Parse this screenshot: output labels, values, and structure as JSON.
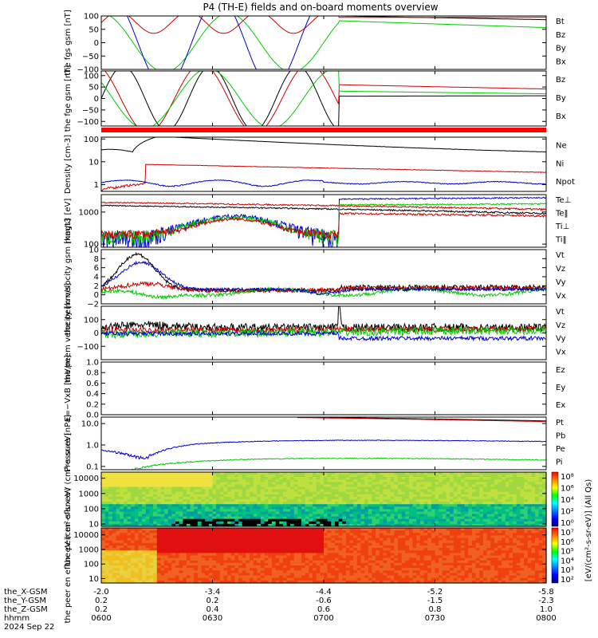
{
  "title": "P4 (TH-E) fields and on-board moments overview",
  "colors": {
    "black": "#000000",
    "red": "#cc0000",
    "green": "#00cc00",
    "blue": "#0000cc"
  },
  "time_axis": {
    "ticks": [
      "0600",
      "0630",
      "0700",
      "0730",
      "0800"
    ],
    "rows": [
      {
        "label": "the_X-GSM",
        "values": [
          "-2.0",
          "-3.4",
          "-4.4",
          "-5.2",
          "-5.8"
        ]
      },
      {
        "label": "the_Y-GSM",
        "values": [
          "0.2",
          "0.2",
          "-0.6",
          "-1.5",
          "-2.3"
        ]
      },
      {
        "label": "the_Z-GSM",
        "values": [
          "0.2",
          "0.4",
          "0.6",
          "0.8",
          "1.0"
        ]
      },
      {
        "label": "hhmm",
        "values": [
          "0600",
          "0630",
          "0700",
          "0730",
          "0800"
        ]
      }
    ],
    "date": "2024 Sep 22"
  },
  "colorbar_label": "[eV/(cm²-s-sr-eV)] (All Qs)",
  "colorbars": [
    {
      "ticks": [
        "10⁸",
        "10⁶",
        "10⁴",
        "10²",
        "10⁰"
      ]
    },
    {
      "ticks": [
        "10⁷",
        "10⁶",
        "10⁵",
        "10⁴",
        "10³",
        "10²"
      ]
    }
  ],
  "chart_data": [
    {
      "type": "line",
      "name": "fgs",
      "ylabel": "the fgs gsm [nT]",
      "ylim": [
        -100,
        100
      ],
      "yticks": [
        "100",
        "50",
        "0",
        "−50",
        "−100"
      ],
      "legend": [
        {
          "text": "Bt",
          "color": "black"
        },
        {
          "text": "Bz",
          "color": "red"
        },
        {
          "text": "By",
          "color": "green"
        },
        {
          "text": "Bx",
          "color": "blue"
        }
      ]
    },
    {
      "type": "line",
      "name": "fge",
      "ylabel": "the fge gsm [nT]",
      "ylim": [
        -120,
        120
      ],
      "yticks": [
        "100",
        "50",
        "0",
        "−50",
        "−100"
      ],
      "legend": [
        {
          "text": "Bz",
          "color": "red"
        },
        {
          "text": "By",
          "color": "green"
        },
        {
          "text": "Bx",
          "color": "black"
        }
      ]
    },
    {
      "type": "line",
      "name": "density",
      "ylabel": "Density [cm-3]",
      "scale": "log",
      "ylim": [
        0.5,
        120
      ],
      "yticks": [
        "100",
        "10",
        "1"
      ],
      "legend": [
        {
          "text": "Ne",
          "color": "red"
        },
        {
          "text": "Ni",
          "color": "black"
        },
        {
          "text": "Npot",
          "color": "blue"
        }
      ]
    },
    {
      "type": "line",
      "name": "temperature",
      "ylabel": "magt3 [eV]",
      "scale": "log",
      "ylim": [
        80,
        3500
      ],
      "yticks": [
        "1000",
        "100"
      ],
      "legend": [
        {
          "text": "Te⊥",
          "color": "red"
        },
        {
          "text": "Te‖",
          "color": "black"
        },
        {
          "text": "Ti⊥",
          "color": "red"
        },
        {
          "text": "Ti‖",
          "color": "green"
        }
      ]
    },
    {
      "type": "line",
      "name": "peim",
      "ylabel": "the peim velocity gsm [km/s]",
      "ylim": [
        -2,
        10
      ],
      "yticks": [
        "10",
        "8",
        "6",
        "4",
        "2",
        "0",
        "−2"
      ],
      "legend": [
        {
          "text": "Vt",
          "color": "black"
        },
        {
          "text": "Vz",
          "color": "red"
        },
        {
          "text": "Vy",
          "color": "green"
        },
        {
          "text": "Vx",
          "color": "blue"
        }
      ]
    },
    {
      "type": "line",
      "name": "peem",
      "ylabel": "the peem velocity [km/s]",
      "ylim": [
        -200,
        200
      ],
      "yticks": [
        "100",
        "0",
        "−100"
      ],
      "legend": [
        {
          "text": "Vt",
          "color": "black"
        },
        {
          "text": "Vz",
          "color": "red"
        },
        {
          "text": "Vy",
          "color": "green"
        },
        {
          "text": "Vx",
          "color": "blue"
        }
      ]
    },
    {
      "type": "line",
      "name": "efield",
      "ylabel": "E=−VxB [mV/m]",
      "ylim": [
        0,
        1
      ],
      "yticks": [
        "1.0",
        "0.8",
        "0.6",
        "0.4",
        "0.2",
        "0.0"
      ],
      "legend": [
        {
          "text": "Ez",
          "color": "red"
        },
        {
          "text": "Ey",
          "color": "green"
        },
        {
          "text": "Ex",
          "color": "blue"
        }
      ]
    },
    {
      "type": "line",
      "name": "pressure",
      "ylabel": "Pressure [nPa]",
      "scale": "log",
      "ylim": [
        0.07,
        20
      ],
      "yticks": [
        "10.0",
        "1.0",
        "0.1"
      ],
      "legend": [
        {
          "text": "Pt",
          "color": "black"
        },
        {
          "text": "Pb",
          "color": "red"
        },
        {
          "text": "Pe",
          "color": "green"
        },
        {
          "text": "Pi",
          "color": "blue"
        }
      ]
    },
    {
      "type": "heatmap",
      "name": "peir",
      "ylabel": "the peir en eflux eV (cm²-s-sr-eV)",
      "scale": "log",
      "ylim": [
        7,
        25000
      ],
      "yticks": [
        "10000",
        "1000",
        "100",
        "10"
      ]
    },
    {
      "type": "heatmap",
      "name": "peer",
      "ylabel": "the peer en eflux eV (cm²-s-sr-eV)",
      "scale": "log",
      "ylim": [
        5,
        30000
      ],
      "yticks": [
        "10000",
        "1000",
        "100",
        "10"
      ]
    }
  ]
}
